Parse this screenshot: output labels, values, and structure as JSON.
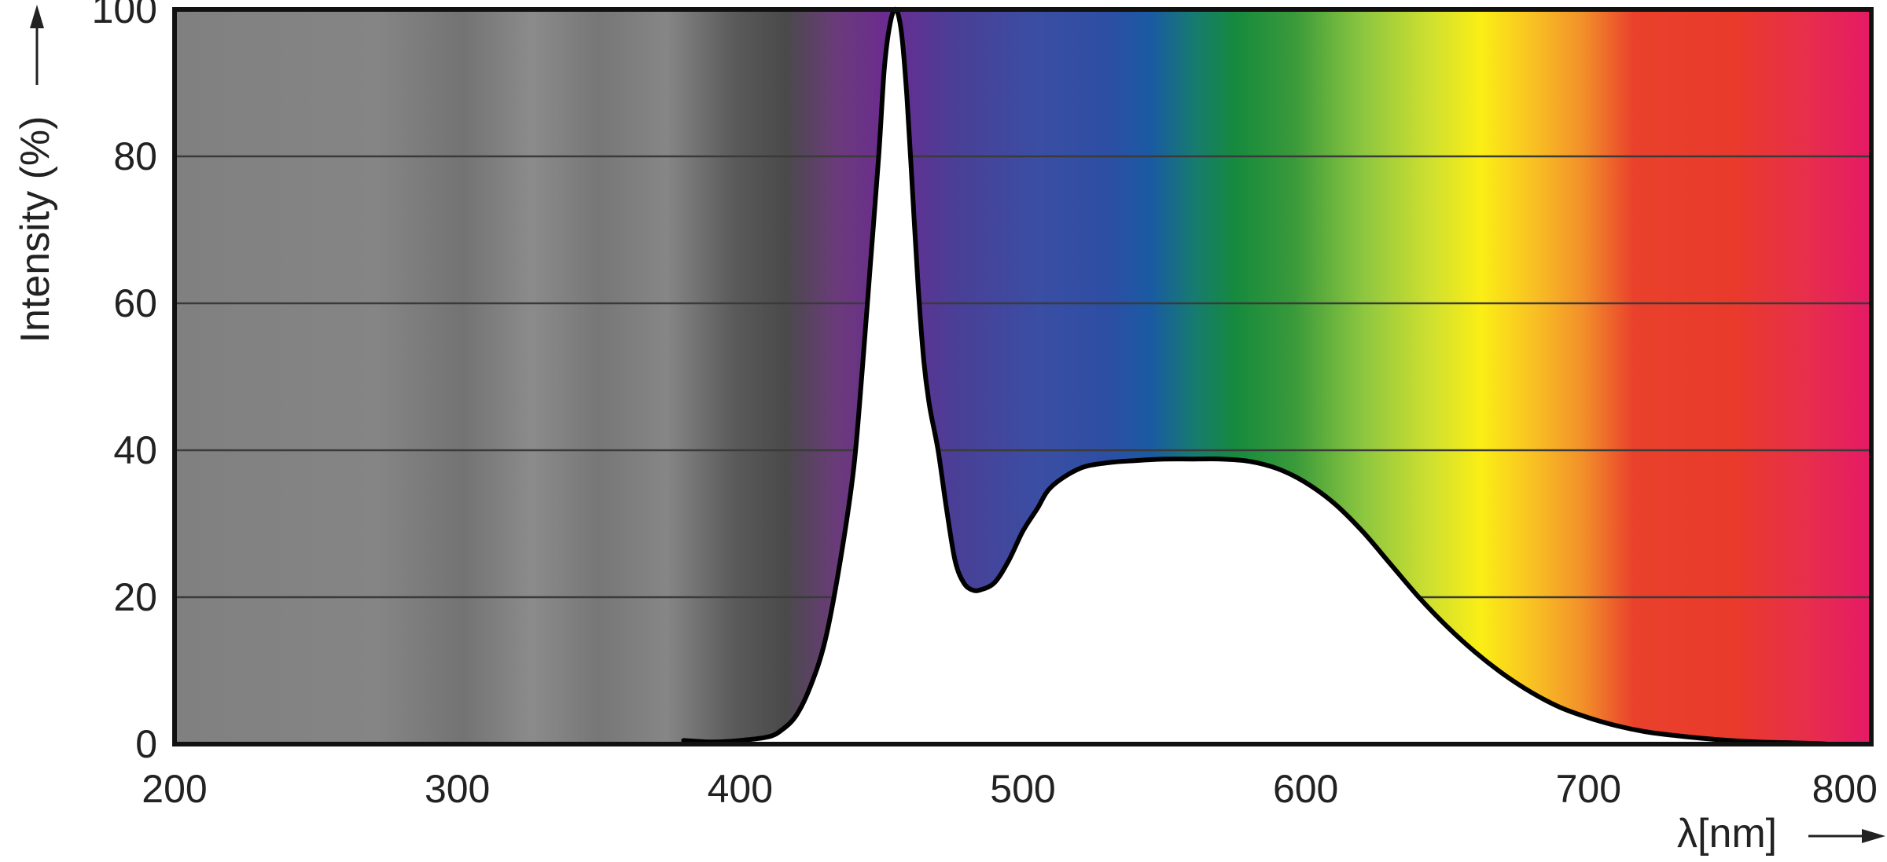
{
  "chart_data": {
    "type": "area",
    "title": "",
    "xlabel": "λ[nm]",
    "ylabel": "Intensity (%)",
    "xlim": [
      200,
      800
    ],
    "ylim": [
      0,
      100
    ],
    "x_ticks": [
      "200",
      "300",
      "400",
      "500",
      "600",
      "700",
      "800"
    ],
    "y_ticks": [
      "0",
      "20",
      "40",
      "60",
      "80",
      "100"
    ],
    "grid": true,
    "legend": "none",
    "background": "visible-spectrum color gradient (grey below ~365 nm, violet → blue → green → yellow → orange → red → magenta)",
    "series": [
      {
        "x": [
          380,
          390,
          400,
          410,
          415,
          420,
          425,
          430,
          435,
          440,
          443,
          446,
          449,
          451,
          453,
          455,
          457,
          459,
          461,
          463,
          465,
          467,
          470,
          473,
          476,
          479,
          482,
          485,
          490,
          495,
          500,
          505,
          510,
          520,
          530,
          540,
          550,
          560,
          570,
          580,
          590,
          600,
          610,
          620,
          630,
          640,
          650,
          660,
          670,
          680,
          690,
          700,
          710,
          720,
          730,
          740,
          750,
          760,
          770,
          780,
          785
        ],
        "y": [
          0.5,
          0.3,
          0.5,
          1,
          2,
          4,
          8,
          14,
          24,
          37,
          50,
          65,
          80,
          92,
          98,
          100,
          97,
          88,
          75,
          62,
          52,
          46,
          40,
          32,
          25,
          22,
          21,
          21,
          22,
          25,
          29,
          32,
          35,
          37.5,
          38.3,
          38.6,
          38.8,
          38.8,
          38.8,
          38.5,
          37.5,
          35.6,
          32.8,
          29,
          24.5,
          20,
          16,
          12.5,
          9.5,
          7,
          5,
          3.6,
          2.5,
          1.7,
          1.2,
          0.8,
          0.5,
          0.3,
          0.2,
          0.1,
          0
        ]
      }
    ]
  }
}
